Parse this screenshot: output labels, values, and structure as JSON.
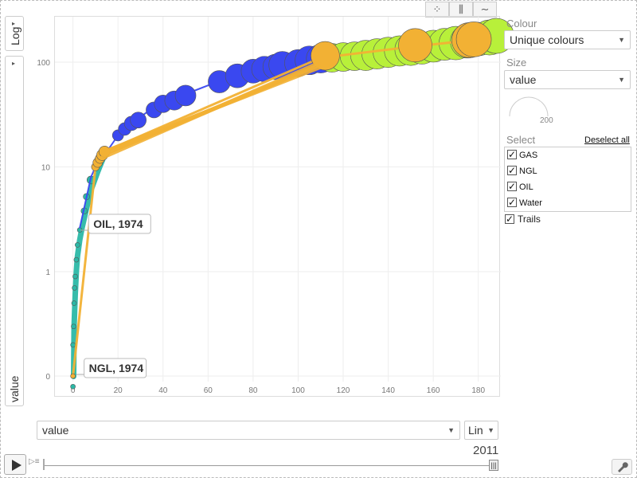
{
  "left_controls": {
    "y_scale": "Log",
    "y_metric": "value",
    "arrow": "▸"
  },
  "chart_type_buttons": [
    {
      "name": "bubbles",
      "glyph": "⁘"
    },
    {
      "name": "bars",
      "glyph": "⫼"
    },
    {
      "name": "lines",
      "glyph": "∼"
    }
  ],
  "right_panel": {
    "colour_label": "Colour",
    "colour_value": "Unique colours",
    "size_label": "Size",
    "size_value": "value",
    "size_legend_value": "200",
    "select_label": "Select",
    "deselect_all": "Deselect all",
    "items": [
      {
        "label": "GAS",
        "checked": true
      },
      {
        "label": "NGL",
        "checked": true
      },
      {
        "label": "OIL",
        "checked": true
      },
      {
        "label": "Water",
        "checked": true
      }
    ],
    "trails_label": "Trails",
    "trails_checked": true
  },
  "bottom": {
    "x_metric": "value",
    "x_scale": "Lin",
    "year": "2011",
    "speed_icon": "▷≡",
    "thumb_glyph": "|||",
    "wrench_icon": "wrench-icon"
  },
  "colors": {
    "GAS": "#3a48f0",
    "NGL": "#f2b134",
    "OIL": "#2bb8a6",
    "Water": "#b8f03a"
  },
  "chart_data": {
    "type": "scatter",
    "x_axis": {
      "scale": "linear",
      "range": [
        -8,
        190
      ],
      "ticks": [
        0,
        20,
        40,
        60,
        80,
        100,
        120,
        140,
        160,
        180
      ]
    },
    "y_axis": {
      "scale": "log",
      "ticks": [
        0,
        1,
        10,
        100
      ],
      "tick_labels": [
        "0",
        "1",
        "10",
        "100"
      ]
    },
    "grid": true,
    "end_year": "2011",
    "tooltips": [
      {
        "label": "OIL, 1974",
        "x": 2,
        "y": 2.4
      },
      {
        "label": "NGL, 1974",
        "x": 0,
        "y": 0.02
      }
    ],
    "series": [
      {
        "name": "OIL",
        "color": "#2bb8a6",
        "trail_points": [
          [
            0,
            0.02
          ],
          [
            0.3,
            0.1
          ],
          [
            0.5,
            0.3
          ],
          [
            1,
            0.6
          ],
          [
            1.5,
            1
          ],
          [
            2,
            1.4
          ],
          [
            3,
            2
          ],
          [
            4,
            2.6
          ],
          [
            6,
            4
          ],
          [
            8,
            6
          ],
          [
            11,
            9
          ],
          [
            14,
            13
          ]
        ],
        "bubbles": [
          [
            0,
            0.08,
            3
          ],
          [
            0,
            0.2,
            3
          ],
          [
            0.3,
            0.3,
            3
          ],
          [
            0.5,
            0.5,
            3
          ],
          [
            0.7,
            0.7,
            3
          ],
          [
            1,
            0.9,
            3
          ],
          [
            1.5,
            1.3,
            3
          ],
          [
            2,
            1.8,
            3
          ],
          [
            3,
            2.5,
            3
          ],
          [
            5,
            3.8,
            4
          ],
          [
            6,
            5.2,
            4
          ],
          [
            8,
            7.5,
            5
          ]
        ]
      },
      {
        "name": "GAS",
        "color": "#3a48f0",
        "trail_points": [
          [
            3,
            2.6
          ],
          [
            8,
            8
          ],
          [
            10,
            10
          ],
          [
            14,
            13
          ],
          [
            20,
            20
          ],
          [
            25,
            25
          ],
          [
            35,
            36
          ],
          [
            45,
            45
          ],
          [
            60,
            60
          ],
          [
            80,
            80
          ],
          [
            95,
            95
          ],
          [
            105,
            110
          ],
          [
            110,
            115
          ]
        ],
        "bubbles": [
          [
            20,
            20,
            7
          ],
          [
            23,
            23,
            8
          ],
          [
            26,
            26,
            9
          ],
          [
            29,
            28,
            10
          ],
          [
            36,
            35,
            10
          ],
          [
            40,
            40,
            11
          ],
          [
            45,
            43,
            12
          ],
          [
            50,
            48,
            13
          ],
          [
            65,
            65,
            14
          ],
          [
            73,
            74,
            15
          ],
          [
            80,
            82,
            15
          ],
          [
            85,
            86,
            16
          ],
          [
            90,
            90,
            16
          ],
          [
            93,
            94,
            17
          ],
          [
            100,
            98,
            17
          ],
          [
            105,
            104,
            18
          ],
          [
            110,
            108,
            18
          ]
        ]
      },
      {
        "name": "Water",
        "color": "#b8f03a",
        "trail_points": [
          [
            110,
            110
          ],
          [
            130,
            125
          ],
          [
            150,
            140
          ],
          [
            170,
            155
          ],
          [
            185,
            170
          ]
        ],
        "bubbles": [
          [
            115,
            110,
            18
          ],
          [
            120,
            112,
            18
          ],
          [
            125,
            114,
            18
          ],
          [
            130,
            116,
            19
          ],
          [
            135,
            120,
            19
          ],
          [
            140,
            124,
            19
          ],
          [
            145,
            128,
            19
          ],
          [
            150,
            132,
            20
          ],
          [
            155,
            136,
            20
          ],
          [
            160,
            142,
            20
          ],
          [
            165,
            148,
            20
          ],
          [
            170,
            152,
            21
          ],
          [
            175,
            158,
            21
          ],
          [
            180,
            166,
            21
          ],
          [
            185,
            172,
            22
          ],
          [
            188,
            178,
            22
          ]
        ]
      },
      {
        "name": "NGL",
        "color": "#f2b134",
        "trail_points": [
          [
            0,
            0.02
          ],
          [
            10,
            10
          ],
          [
            12,
            12
          ],
          [
            14,
            14
          ],
          [
            110,
            110
          ],
          [
            150,
            140
          ],
          [
            175,
            160
          ]
        ],
        "bubbles": [
          [
            0,
            0.02,
            3
          ],
          [
            10,
            10,
            5
          ],
          [
            11,
            11,
            6
          ],
          [
            12,
            12,
            6
          ],
          [
            13,
            13,
            7
          ],
          [
            14,
            14,
            7
          ],
          [
            112,
            115,
            18
          ],
          [
            152,
            145,
            21
          ],
          [
            176,
            162,
            22
          ],
          [
            178,
            165,
            22
          ]
        ]
      }
    ]
  }
}
